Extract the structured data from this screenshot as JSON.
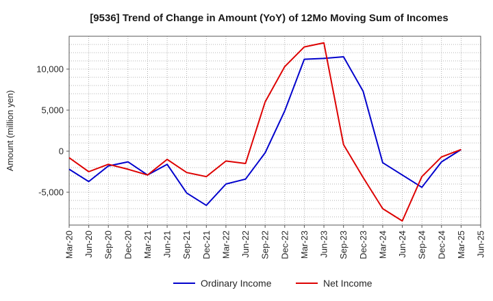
{
  "chart_data": {
    "type": "line",
    "title": "[9536]  Trend of Change in Amount (YoY) of 12Mo Moving Sum of Incomes",
    "xlabel": "",
    "ylabel": "Amount (million yen)",
    "x": [
      "Mar-20",
      "Jun-20",
      "Sep-20",
      "Dec-20",
      "Mar-21",
      "Jun-21",
      "Sep-21",
      "Dec-21",
      "Mar-22",
      "Jun-22",
      "Sep-22",
      "Dec-22",
      "Mar-23",
      "Jun-23",
      "Sep-23",
      "Dec-23",
      "Mar-24",
      "Jun-24",
      "Sep-24",
      "Dec-24",
      "Mar-25",
      "Jun-25"
    ],
    "ylim": [
      -9000,
      14000
    ],
    "yticks": [
      -5000,
      0,
      5000,
      10000
    ],
    "ytick_labels": [
      "-5,000",
      "0",
      "5,000",
      "10,000"
    ],
    "grid": true,
    "legend_position": "bottom",
    "series": [
      {
        "name": "Ordinary Income",
        "color": "#0000cc",
        "values": [
          -2200,
          -3700,
          -1800,
          -1300,
          -2900,
          -1600,
          -5100,
          -6600,
          -4000,
          -3400,
          -200,
          4900,
          11200,
          11300,
          11500,
          7300,
          -1400,
          -2900,
          -4400,
          -1300,
          200,
          null
        ]
      },
      {
        "name": "Net Income",
        "color": "#dd0000",
        "values": [
          -800,
          -2500,
          -1600,
          -2200,
          -2900,
          -1000,
          -2600,
          -3100,
          -1200,
          -1500,
          6000,
          10300,
          12700,
          13200,
          800,
          -3200,
          -7000,
          -8500,
          -3100,
          -700,
          200,
          null
        ]
      }
    ]
  }
}
